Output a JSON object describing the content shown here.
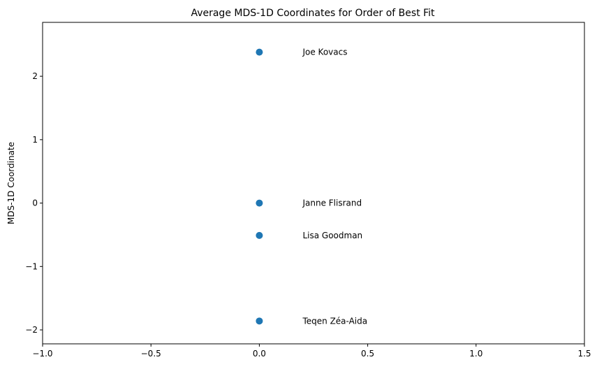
{
  "chart_data": {
    "type": "scatter",
    "title": "Average MDS-1D Coordinates for Order of Best Fit",
    "xlabel": "",
    "ylabel": "MDS-1D Coordinate",
    "xlim": [
      -1.0,
      1.5
    ],
    "ylim": [
      -2.22,
      2.85
    ],
    "xticks": [
      -1.0,
      -0.5,
      0.0,
      0.5,
      1.0,
      1.5
    ],
    "xtick_labels": [
      "−1.0",
      "−0.5",
      "0.0",
      "0.5",
      "1.0",
      "1.5"
    ],
    "yticks": [
      -2,
      -1,
      0,
      1,
      2
    ],
    "ytick_labels": [
      "−2",
      "−1",
      "0",
      "1",
      "2"
    ],
    "grid": false,
    "marker_color": "#1f77b4",
    "points": [
      {
        "x": 0.0,
        "y": 2.38,
        "label": "Joe Kovacs"
      },
      {
        "x": 0.0,
        "y": 0.0,
        "label": "Janne Flisrand"
      },
      {
        "x": 0.0,
        "y": -0.51,
        "label": "Lisa Goodman"
      },
      {
        "x": 0.0,
        "y": -1.86,
        "label": "Teqen Zéa-Aida"
      }
    ],
    "label_offset_x": 0.2
  }
}
